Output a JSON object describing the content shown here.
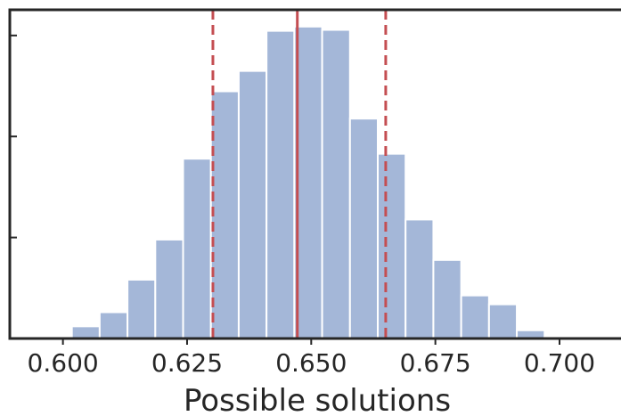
{
  "chart_data": {
    "type": "bar",
    "title": "",
    "xlabel": "Possible solutions",
    "ylabel": "",
    "xlim": [
      0.5893,
      0.7131
    ],
    "ylim": [
      0,
      1.0
    ],
    "xticks": [
      0.6,
      0.625,
      0.65,
      0.675,
      0.7
    ],
    "xtick_labels": [
      "0.600",
      "0.625",
      "0.650",
      "0.675",
      "0.700"
    ],
    "yticks": [
      0.3073,
      0.6146,
      0.9219
    ],
    "ytick_labels": [
      "",
      "",
      ""
    ],
    "bin_edges": [
      0.6018,
      0.6074,
      0.613,
      0.6186,
      0.6242,
      0.6298,
      0.6354,
      0.641,
      0.6466,
      0.6522,
      0.6578,
      0.6634,
      0.669,
      0.6746,
      0.6802,
      0.6858,
      0.6914,
      0.697,
      0.7026
    ],
    "values": [
      0.037,
      0.08,
      0.179,
      0.301,
      0.547,
      0.752,
      0.814,
      0.936,
      0.949,
      0.939,
      0.669,
      0.562,
      0.362,
      0.239,
      0.131,
      0.104,
      0.025,
      0.004
    ],
    "bar_color": "#a4b7d8",
    "lines": [
      {
        "x": 0.6472,
        "style": "solid",
        "color": "#c44e52"
      },
      {
        "x": 0.6302,
        "style": "dashed",
        "color": "#c44e52"
      },
      {
        "x": 0.665,
        "style": "dashed",
        "color": "#c44e52"
      }
    ],
    "grid": false,
    "legend": "none"
  }
}
